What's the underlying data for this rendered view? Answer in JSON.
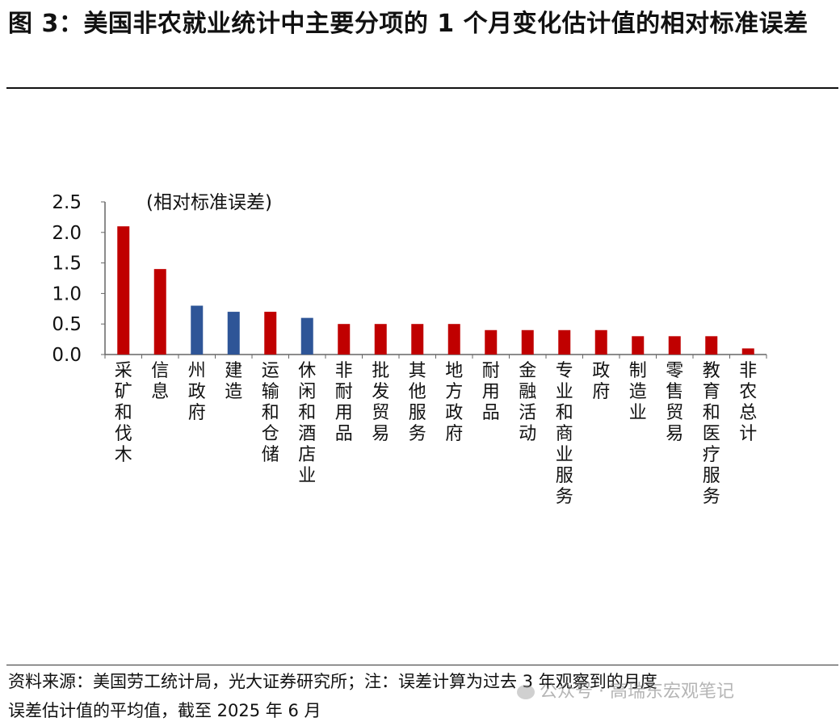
{
  "figure": {
    "title": "图 3：美国非农就业统计中主要分项的 1 个月变化估计值的相对标准误差",
    "source_line1": "资料来源：美国劳工统计局，光大证券研究所；注：误差计算为过去 3 年观察到的月度",
    "source_line2": "误差估计值的平均值，截至 2025 年 6 月",
    "watermark": "公众号 · 高瑞东宏观笔记"
  },
  "chart_data": {
    "type": "bar",
    "ylabel": "(相对标准误差)",
    "ylim": [
      0,
      2.5
    ],
    "yticks": [
      "0.0",
      "0.5",
      "1.0",
      "1.5",
      "2.0",
      "2.5"
    ],
    "grid": false,
    "categories": [
      "采矿和伐木",
      "信息",
      "州政府",
      "建造",
      "运输和仓储",
      "休闲和酒店业",
      "非耐用品",
      "批发贸易",
      "其他服务",
      "地方政府",
      "耐用品",
      "金融活动",
      "专业和商业服务",
      "政府",
      "制造业",
      "零售贸易",
      "教育和医疗服务",
      "非农总计"
    ],
    "values": [
      2.1,
      1.4,
      0.8,
      0.7,
      0.7,
      0.6,
      0.5,
      0.5,
      0.5,
      0.5,
      0.4,
      0.4,
      0.4,
      0.4,
      0.3,
      0.3,
      0.3,
      0.1
    ],
    "colors": [
      "#C00000",
      "#C00000",
      "#2E5597",
      "#2E5597",
      "#C00000",
      "#2E5597",
      "#C00000",
      "#C00000",
      "#C00000",
      "#C00000",
      "#C00000",
      "#C00000",
      "#C00000",
      "#C00000",
      "#C00000",
      "#C00000",
      "#C00000",
      "#C00000"
    ]
  }
}
